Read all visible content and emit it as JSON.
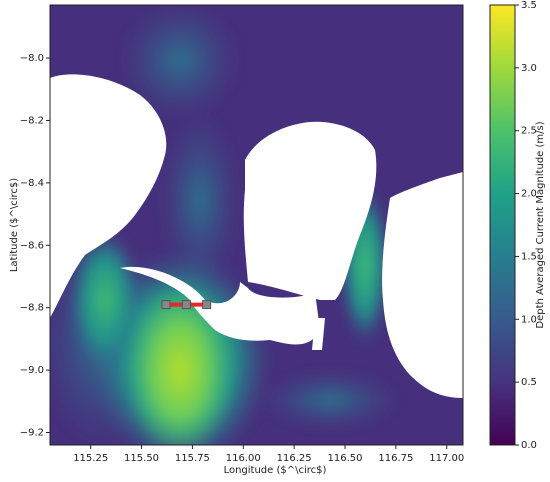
{
  "chart_data": {
    "type": "heatmap",
    "x_label": "Longitude ($^\\circ$)",
    "y_label": "Latitude ($^\\circ$)",
    "xlim": [
      115.05,
      117.08
    ],
    "xticks": [
      {
        "value": 115.25,
        "label": "115.25"
      },
      {
        "value": 115.5,
        "label": "115.50"
      },
      {
        "value": 115.75,
        "label": "115.75"
      },
      {
        "value": 116.0,
        "label": "116.00"
      },
      {
        "value": 116.25,
        "label": "116.25"
      },
      {
        "value": 116.5,
        "label": "116.50"
      },
      {
        "value": 116.75,
        "label": "116.75"
      },
      {
        "value": 117.0,
        "label": "117.00"
      }
    ],
    "ylim": [
      -9.24,
      -7.83
    ],
    "yticks": [
      {
        "value": -9.2,
        "label": "−9.2"
      },
      {
        "value": -9.0,
        "label": "−9.0"
      },
      {
        "value": -8.8,
        "label": "−8.8"
      },
      {
        "value": -8.6,
        "label": "−8.6"
      },
      {
        "value": -8.4,
        "label": "−8.4"
      },
      {
        "value": -8.2,
        "label": "−8.2"
      },
      {
        "value": -8.0,
        "label": "−8.0"
      }
    ],
    "colorbar": {
      "label": "Depth Averaged Current Magnitude (m/s)",
      "lim": [
        0,
        3.5
      ],
      "ticks": [
        {
          "value": 0,
          "label": "0.0"
        },
        {
          "value": 0.5,
          "label": "0.5"
        },
        {
          "value": 1,
          "label": "1.0"
        },
        {
          "value": 1.5,
          "label": "1.5"
        },
        {
          "value": 2,
          "label": "2.0"
        },
        {
          "value": 2.5,
          "label": "2.5"
        },
        {
          "value": 3,
          "label": "3.0"
        },
        {
          "value": 3.5,
          "label": "3.5"
        }
      ]
    },
    "transect": {
      "x": [
        115.62,
        115.72,
        115.82
      ],
      "y": [
        -8.79,
        -8.79,
        -8.79
      ]
    }
  }
}
